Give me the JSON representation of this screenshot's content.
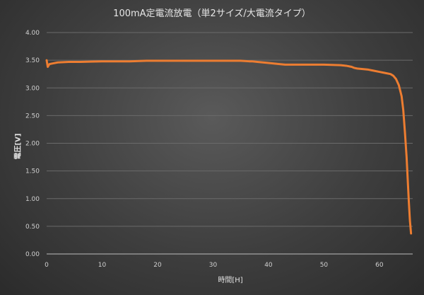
{
  "chart_data": {
    "type": "line",
    "title": "100mA定電流放電（単2サイズ/大電流タイプ）",
    "xlabel": "時間[H]",
    "ylabel": "電圧[V]",
    "xlim": [
      0,
      66
    ],
    "ylim": [
      0,
      4.0
    ],
    "x_ticks": [
      "0",
      "10",
      "20",
      "30",
      "40",
      "50",
      "60"
    ],
    "y_ticks": [
      "0.00",
      "0.50",
      "1.00",
      "1.50",
      "2.00",
      "2.50",
      "3.00",
      "3.50",
      "4.00"
    ],
    "grid": true,
    "legend": "none",
    "series": [
      {
        "color": "#ED7D31",
        "x": [
          0,
          0.2,
          0.5,
          1,
          2,
          4,
          6,
          10,
          15,
          18,
          20,
          25,
          30,
          35,
          36.5,
          37,
          38,
          40,
          42,
          43,
          45,
          50,
          53,
          54,
          55,
          55.5,
          56,
          57,
          58,
          59,
          60,
          61,
          62,
          62.5,
          63,
          63.5,
          64,
          64.3,
          64.6,
          64.9,
          65.1,
          65.3,
          65.5,
          65.7
        ],
        "y": [
          3.5,
          3.38,
          3.43,
          3.44,
          3.46,
          3.47,
          3.47,
          3.48,
          3.48,
          3.49,
          3.49,
          3.49,
          3.49,
          3.49,
          3.48,
          3.48,
          3.47,
          3.45,
          3.43,
          3.42,
          3.42,
          3.42,
          3.41,
          3.4,
          3.38,
          3.36,
          3.35,
          3.34,
          3.33,
          3.31,
          3.29,
          3.27,
          3.25,
          3.22,
          3.16,
          3.05,
          2.85,
          2.6,
          2.2,
          1.75,
          1.35,
          0.95,
          0.6,
          0.37
        ]
      }
    ]
  }
}
